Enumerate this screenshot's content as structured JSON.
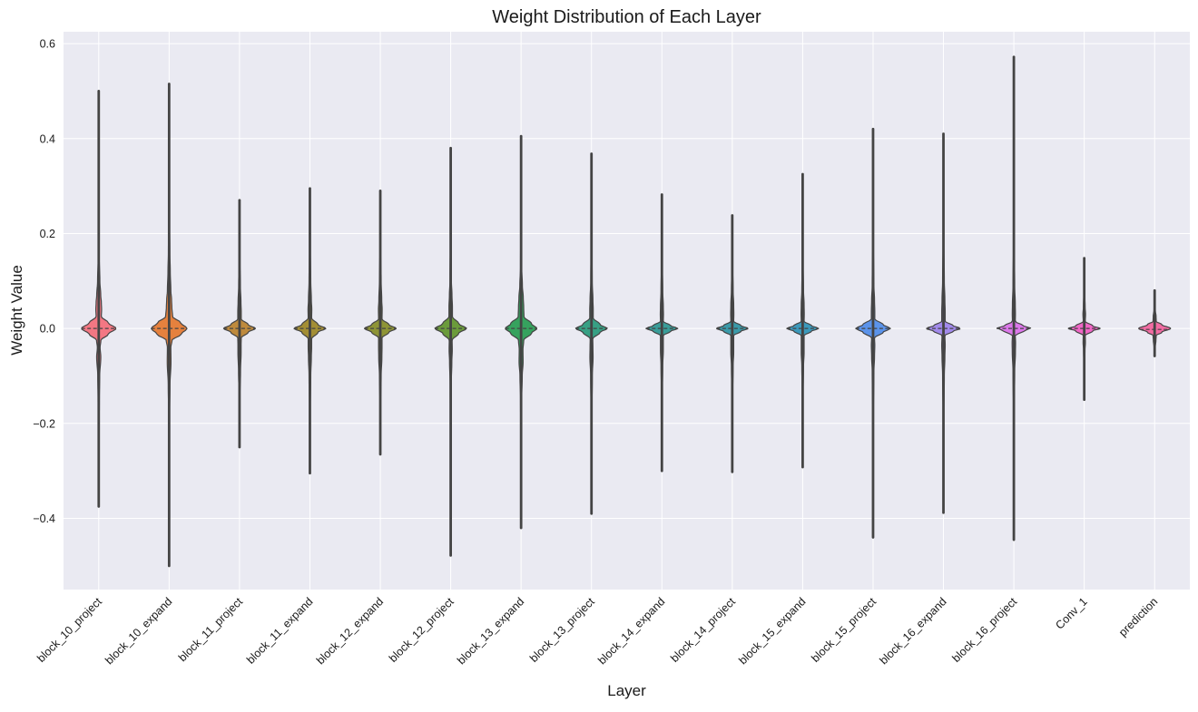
{
  "chart_data": {
    "type": "violin",
    "title": "Weight Distribution of Each Layer",
    "xlabel": "Layer",
    "ylabel": "Weight Value",
    "ylim": [
      -0.55,
      0.625
    ],
    "yticks": [
      -0.4,
      -0.2,
      0.0,
      0.2,
      0.4,
      0.6
    ],
    "ytick_labels": [
      "−0.4",
      "−0.2",
      "0.0",
      "0.2",
      "0.4",
      "0.6"
    ],
    "grid": true,
    "inner": "quartile",
    "categories": [
      "block_10_project",
      "block_10_expand",
      "block_11_project",
      "block_11_expand",
      "block_12_expand",
      "block_12_project",
      "block_13_expand",
      "block_13_project",
      "block_14_expand",
      "block_14_project",
      "block_15_expand",
      "block_15_project",
      "block_16_expand",
      "block_16_project",
      "Conv_1",
      "prediction"
    ],
    "colors": [
      "#f37783",
      "#e5813e",
      "#be8a3d",
      "#a38e35",
      "#8e9436",
      "#6b9b3b",
      "#36a25e",
      "#37a084",
      "#399d99",
      "#3a9aa9",
      "#3b99bb",
      "#5b93ea",
      "#a28aeb",
      "#dc78ea",
      "#f066c6",
      "#f26ca3"
    ],
    "series": [
      {
        "name": "block_10_project",
        "min": -0.375,
        "max": 0.5,
        "median": 0.0,
        "profile": [
          [
            -0.375,
            0.002
          ],
          [
            -0.25,
            0.008
          ],
          [
            -0.15,
            0.022
          ],
          [
            -0.1,
            0.034
          ],
          [
            -0.06,
            0.072
          ],
          [
            -0.04,
            0.048
          ],
          [
            -0.025,
            0.075
          ],
          [
            -0.012,
            0.33
          ],
          [
            0.0,
            0.6
          ],
          [
            0.012,
            0.33
          ],
          [
            0.025,
            0.09
          ],
          [
            0.04,
            0.1
          ],
          [
            0.055,
            0.09
          ],
          [
            0.07,
            0.07
          ],
          [
            0.1,
            0.04
          ],
          [
            0.15,
            0.018
          ],
          [
            0.25,
            0.008
          ],
          [
            0.5,
            0.002
          ]
        ]
      },
      {
        "name": "block_10_expand",
        "min": -0.5,
        "max": 0.515,
        "median": 0.0,
        "profile": [
          [
            -0.5,
            0.002
          ],
          [
            -0.3,
            0.006
          ],
          [
            -0.18,
            0.016
          ],
          [
            -0.12,
            0.03
          ],
          [
            -0.07,
            0.065
          ],
          [
            -0.04,
            0.06
          ],
          [
            -0.025,
            0.1
          ],
          [
            -0.012,
            0.42
          ],
          [
            0.0,
            0.62
          ],
          [
            0.012,
            0.4
          ],
          [
            0.025,
            0.12
          ],
          [
            0.045,
            0.095
          ],
          [
            0.06,
            0.085
          ],
          [
            0.08,
            0.06
          ],
          [
            0.12,
            0.04
          ],
          [
            0.16,
            0.025
          ],
          [
            0.25,
            0.008
          ],
          [
            0.515,
            0.002
          ]
        ]
      },
      {
        "name": "block_11_project",
        "min": -0.25,
        "max": 0.27,
        "median": 0.0,
        "profile": [
          [
            -0.25,
            0.002
          ],
          [
            -0.15,
            0.01
          ],
          [
            -0.09,
            0.035
          ],
          [
            -0.05,
            0.055
          ],
          [
            -0.035,
            0.055
          ],
          [
            -0.02,
            0.06
          ],
          [
            -0.008,
            0.3
          ],
          [
            0.0,
            0.55
          ],
          [
            0.008,
            0.3
          ],
          [
            0.02,
            0.06
          ],
          [
            0.035,
            0.06
          ],
          [
            0.055,
            0.05
          ],
          [
            0.09,
            0.03
          ],
          [
            0.15,
            0.01
          ],
          [
            0.27,
            0.002
          ]
        ]
      },
      {
        "name": "block_11_expand",
        "min": -0.305,
        "max": 0.295,
        "median": 0.0,
        "profile": [
          [
            -0.305,
            0.002
          ],
          [
            -0.18,
            0.008
          ],
          [
            -0.1,
            0.03
          ],
          [
            -0.06,
            0.05
          ],
          [
            -0.04,
            0.06
          ],
          [
            -0.022,
            0.06
          ],
          [
            -0.008,
            0.28
          ],
          [
            0.0,
            0.55
          ],
          [
            0.008,
            0.28
          ],
          [
            0.022,
            0.06
          ],
          [
            0.04,
            0.065
          ],
          [
            0.06,
            0.05
          ],
          [
            0.1,
            0.03
          ],
          [
            0.18,
            0.008
          ],
          [
            0.295,
            0.002
          ]
        ]
      },
      {
        "name": "block_12_expand",
        "min": -0.265,
        "max": 0.29,
        "median": 0.0,
        "profile": [
          [
            -0.265,
            0.002
          ],
          [
            -0.16,
            0.01
          ],
          [
            -0.1,
            0.03
          ],
          [
            -0.06,
            0.055
          ],
          [
            -0.04,
            0.06
          ],
          [
            -0.02,
            0.06
          ],
          [
            -0.008,
            0.3
          ],
          [
            0.0,
            0.55
          ],
          [
            0.008,
            0.3
          ],
          [
            0.02,
            0.06
          ],
          [
            0.04,
            0.065
          ],
          [
            0.06,
            0.05
          ],
          [
            0.1,
            0.03
          ],
          [
            0.17,
            0.01
          ],
          [
            0.29,
            0.002
          ]
        ]
      },
      {
        "name": "block_12_project",
        "min": -0.478,
        "max": 0.38,
        "median": 0.0,
        "profile": [
          [
            -0.478,
            0.002
          ],
          [
            -0.25,
            0.006
          ],
          [
            -0.12,
            0.018
          ],
          [
            -0.07,
            0.04
          ],
          [
            -0.045,
            0.055
          ],
          [
            -0.025,
            0.05
          ],
          [
            -0.01,
            0.28
          ],
          [
            0.0,
            0.55
          ],
          [
            0.01,
            0.28
          ],
          [
            0.025,
            0.06
          ],
          [
            0.045,
            0.06
          ],
          [
            0.07,
            0.045
          ],
          [
            0.1,
            0.025
          ],
          [
            0.2,
            0.008
          ],
          [
            0.38,
            0.002
          ]
        ]
      },
      {
        "name": "block_13_expand",
        "min": -0.42,
        "max": 0.405,
        "median": 0.0,
        "profile": [
          [
            -0.42,
            0.002
          ],
          [
            -0.25,
            0.006
          ],
          [
            -0.15,
            0.02
          ],
          [
            -0.1,
            0.04
          ],
          [
            -0.07,
            0.07
          ],
          [
            -0.045,
            0.065
          ],
          [
            -0.025,
            0.09
          ],
          [
            -0.01,
            0.36
          ],
          [
            0.0,
            0.55
          ],
          [
            0.01,
            0.36
          ],
          [
            0.025,
            0.1
          ],
          [
            0.045,
            0.09
          ],
          [
            0.065,
            0.075
          ],
          [
            0.09,
            0.045
          ],
          [
            0.13,
            0.02
          ],
          [
            0.25,
            0.006
          ],
          [
            0.405,
            0.002
          ]
        ]
      },
      {
        "name": "block_13_project",
        "min": -0.39,
        "max": 0.368,
        "median": 0.0,
        "profile": [
          [
            -0.39,
            0.002
          ],
          [
            -0.2,
            0.006
          ],
          [
            -0.1,
            0.03
          ],
          [
            -0.06,
            0.055
          ],
          [
            -0.04,
            0.05
          ],
          [
            -0.022,
            0.045
          ],
          [
            -0.008,
            0.3
          ],
          [
            0.0,
            0.55
          ],
          [
            0.008,
            0.3
          ],
          [
            0.022,
            0.06
          ],
          [
            0.04,
            0.06
          ],
          [
            0.06,
            0.05
          ],
          [
            0.1,
            0.025
          ],
          [
            0.2,
            0.006
          ],
          [
            0.368,
            0.002
          ]
        ]
      },
      {
        "name": "block_14_expand",
        "min": -0.3,
        "max": 0.282,
        "median": 0.0,
        "profile": [
          [
            -0.3,
            0.002
          ],
          [
            -0.15,
            0.008
          ],
          [
            -0.08,
            0.03
          ],
          [
            -0.045,
            0.05
          ],
          [
            -0.03,
            0.05
          ],
          [
            -0.015,
            0.05
          ],
          [
            -0.006,
            0.3
          ],
          [
            0.0,
            0.55
          ],
          [
            0.006,
            0.3
          ],
          [
            0.015,
            0.05
          ],
          [
            0.03,
            0.055
          ],
          [
            0.045,
            0.05
          ],
          [
            0.08,
            0.03
          ],
          [
            0.15,
            0.008
          ],
          [
            0.282,
            0.002
          ]
        ]
      },
      {
        "name": "block_14_project",
        "min": -0.302,
        "max": 0.238,
        "median": 0.0,
        "profile": [
          [
            -0.302,
            0.002
          ],
          [
            -0.15,
            0.008
          ],
          [
            -0.08,
            0.03
          ],
          [
            -0.05,
            0.05
          ],
          [
            -0.03,
            0.05
          ],
          [
            -0.015,
            0.05
          ],
          [
            -0.006,
            0.3
          ],
          [
            0.0,
            0.55
          ],
          [
            0.006,
            0.3
          ],
          [
            0.015,
            0.05
          ],
          [
            0.03,
            0.055
          ],
          [
            0.05,
            0.05
          ],
          [
            0.08,
            0.03
          ],
          [
            0.14,
            0.008
          ],
          [
            0.238,
            0.002
          ]
        ]
      },
      {
        "name": "block_15_expand",
        "min": -0.292,
        "max": 0.325,
        "median": 0.0,
        "profile": [
          [
            -0.292,
            0.002
          ],
          [
            -0.15,
            0.008
          ],
          [
            -0.08,
            0.03
          ],
          [
            -0.05,
            0.05
          ],
          [
            -0.03,
            0.05
          ],
          [
            -0.015,
            0.05
          ],
          [
            -0.006,
            0.3
          ],
          [
            0.0,
            0.55
          ],
          [
            0.006,
            0.3
          ],
          [
            0.015,
            0.05
          ],
          [
            0.03,
            0.055
          ],
          [
            0.05,
            0.05
          ],
          [
            0.08,
            0.03
          ],
          [
            0.15,
            0.008
          ],
          [
            0.325,
            0.002
          ]
        ]
      },
      {
        "name": "block_15_project",
        "min": -0.44,
        "max": 0.42,
        "median": 0.0,
        "profile": [
          [
            -0.44,
            0.002
          ],
          [
            -0.2,
            0.006
          ],
          [
            -0.09,
            0.03
          ],
          [
            -0.06,
            0.05
          ],
          [
            -0.035,
            0.06
          ],
          [
            -0.02,
            0.05
          ],
          [
            -0.008,
            0.35
          ],
          [
            0.0,
            0.6
          ],
          [
            0.008,
            0.35
          ],
          [
            0.02,
            0.06
          ],
          [
            0.035,
            0.06
          ],
          [
            0.06,
            0.05
          ],
          [
            0.09,
            0.03
          ],
          [
            0.2,
            0.006
          ],
          [
            0.42,
            0.002
          ]
        ]
      },
      {
        "name": "block_16_expand",
        "min": -0.388,
        "max": 0.41,
        "median": 0.0,
        "profile": [
          [
            -0.388,
            0.002
          ],
          [
            -0.2,
            0.006
          ],
          [
            -0.1,
            0.03
          ],
          [
            -0.06,
            0.05
          ],
          [
            -0.035,
            0.06
          ],
          [
            -0.015,
            0.05
          ],
          [
            -0.006,
            0.33
          ],
          [
            0.0,
            0.6
          ],
          [
            0.006,
            0.33
          ],
          [
            0.015,
            0.06
          ],
          [
            0.035,
            0.06
          ],
          [
            0.06,
            0.05
          ],
          [
            0.1,
            0.03
          ],
          [
            0.2,
            0.006
          ],
          [
            0.41,
            0.002
          ]
        ]
      },
      {
        "name": "block_16_project",
        "min": -0.445,
        "max": 0.572,
        "median": 0.0,
        "profile": [
          [
            -0.445,
            0.002
          ],
          [
            -0.2,
            0.006
          ],
          [
            -0.09,
            0.03
          ],
          [
            -0.05,
            0.055
          ],
          [
            -0.03,
            0.06
          ],
          [
            -0.015,
            0.05
          ],
          [
            -0.005,
            0.35
          ],
          [
            0.0,
            0.6
          ],
          [
            0.005,
            0.35
          ],
          [
            0.015,
            0.05
          ],
          [
            0.03,
            0.055
          ],
          [
            0.05,
            0.05
          ],
          [
            0.09,
            0.03
          ],
          [
            0.2,
            0.006
          ],
          [
            0.572,
            0.002
          ]
        ]
      },
      {
        "name": "Conv_1",
        "min": -0.15,
        "max": 0.148,
        "median": 0.0,
        "profile": [
          [
            -0.15,
            0.002
          ],
          [
            -0.08,
            0.01
          ],
          [
            -0.045,
            0.025
          ],
          [
            -0.03,
            0.04
          ],
          [
            -0.015,
            0.035
          ],
          [
            -0.005,
            0.3
          ],
          [
            0.0,
            0.55
          ],
          [
            0.005,
            0.3
          ],
          [
            0.015,
            0.035
          ],
          [
            0.03,
            0.045
          ],
          [
            0.045,
            0.03
          ],
          [
            0.08,
            0.01
          ],
          [
            0.148,
            0.002
          ]
        ]
      },
      {
        "name": "prediction",
        "min": -0.058,
        "max": 0.08,
        "median": -0.002,
        "profile": [
          [
            -0.058,
            0.002
          ],
          [
            -0.04,
            0.02
          ],
          [
            -0.025,
            0.045
          ],
          [
            -0.015,
            0.055
          ],
          [
            -0.008,
            0.25
          ],
          [
            0.0,
            0.55
          ],
          [
            0.008,
            0.25
          ],
          [
            0.015,
            0.055
          ],
          [
            0.025,
            0.05
          ],
          [
            0.04,
            0.02
          ],
          [
            0.08,
            0.002
          ]
        ]
      }
    ]
  }
}
